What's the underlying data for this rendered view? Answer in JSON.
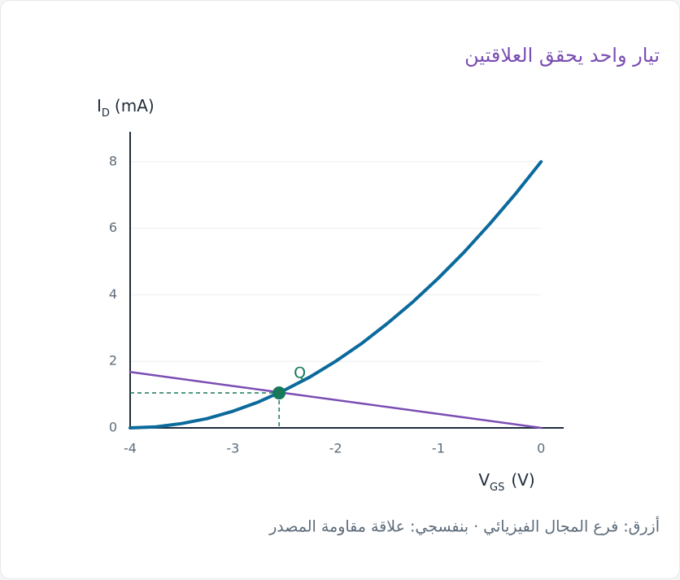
{
  "chart_data": {
    "type": "line",
    "title": "تيار واحد يحقق العلاقتين",
    "x_label": {
      "main": "V",
      "sub": "GS",
      "unit": "(V)"
    },
    "y_label": {
      "main": "I",
      "sub": "D",
      "unit": "(mA)"
    },
    "caption": "أزرق: فرع المجال الفيزيائي · بنفسجي: علاقة مقاومة المصدر",
    "xlim": [
      -4,
      0.22
    ],
    "ylim": [
      0,
      8.9
    ],
    "xticks": [
      -4,
      -3,
      -2,
      -1,
      0
    ],
    "yticks": [
      0,
      2,
      4,
      6,
      8
    ],
    "grid": true,
    "series": [
      {
        "color": "#0b6a9c",
        "x": [
          -4,
          -3.75,
          -3.5,
          -3.25,
          -3,
          -2.75,
          -2.5,
          -2.25,
          -2,
          -1.75,
          -1.5,
          -1.25,
          -1,
          -0.75,
          -0.5,
          -0.25,
          0
        ],
        "values": [
          0,
          0.03,
          0.13,
          0.28,
          0.5,
          0.78,
          1.13,
          1.53,
          2,
          2.53,
          3.13,
          3.78,
          4.5,
          5.28,
          6.13,
          7.03,
          8
        ]
      },
      {
        "color": "#7a4db3",
        "x": [
          -4,
          0
        ],
        "values": [
          1.68,
          0
        ]
      }
    ],
    "annotations": [
      {
        "label": "Q",
        "x": -2.55,
        "y": 1.05,
        "color": "#17795a"
      }
    ]
  }
}
